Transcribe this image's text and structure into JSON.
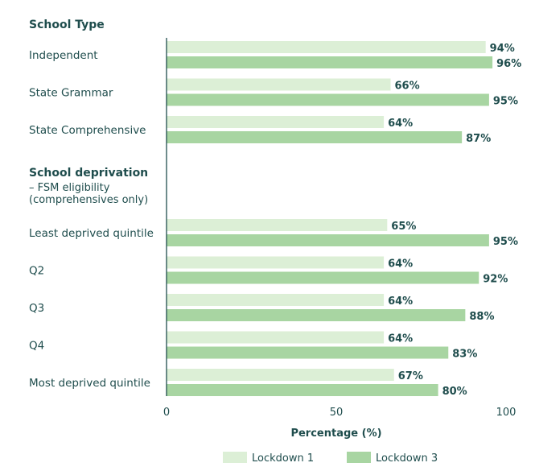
{
  "chart_data": {
    "type": "bar",
    "orientation": "horizontal",
    "xlabel": "Percentage (%)",
    "xlim": [
      0,
      100
    ],
    "xticks": [
      0,
      50,
      100
    ],
    "legend": {
      "placement": "bottom"
    },
    "colors": {
      "Lockdown 1": "#dcefd6",
      "Lockdown 3": "#a8d5a2"
    },
    "groups": [
      {
        "title": "School Type",
        "subtitle": [],
        "categories": [
          "Independent",
          "State Grammar",
          "State Comprehensive"
        ],
        "series": [
          {
            "name": "Lockdown 1",
            "values": [
              94,
              66,
              64
            ]
          },
          {
            "name": "Lockdown 3",
            "values": [
              96,
              95,
              87
            ]
          }
        ]
      },
      {
        "title": "School deprivation",
        "subtitle": [
          "– FSM eligibility",
          "(comprehensives only)"
        ],
        "categories": [
          "Least deprived quintile",
          "Q2",
          "Q3",
          "Q4",
          "Most deprived quintile"
        ],
        "series": [
          {
            "name": "Lockdown 1",
            "values": [
              65,
              64,
              64,
              64,
              67
            ]
          },
          {
            "name": "Lockdown 3",
            "values": [
              95,
              92,
              88,
              83,
              80
            ]
          }
        ]
      }
    ]
  }
}
